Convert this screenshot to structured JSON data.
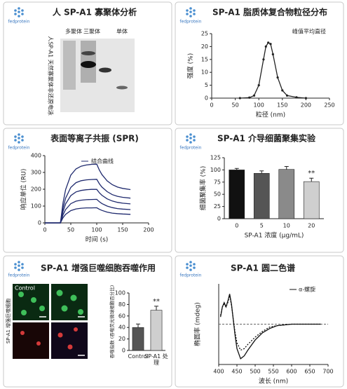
{
  "logo": "fedprotein",
  "gel": {
    "title": "人 SP-A1 寡聚体分析",
    "lanes": [
      "多聚体",
      "三聚体",
      "单体"
    ],
    "side_label": "人SP-A1 天然寡聚体非还原电泳"
  },
  "micrograph": {
    "control_label": "Control",
    "side_label": "SP-A1 增强巨噬细胞"
  },
  "chart_data": [
    {
      "type": "line",
      "title": "SP-A1 脂质体复合物粒径分布",
      "xlabel": "粒径 (nm)",
      "ylabel": "强度 (%)",
      "annotation": "峰值平均直径",
      "markers": true,
      "x": [
        60,
        80,
        90,
        100,
        110,
        115,
        120,
        125,
        130,
        140,
        150,
        160,
        180,
        200
      ],
      "series": [
        {
          "color": "#222222",
          "values": [
            0,
            0.2,
            1,
            5,
            15,
            20,
            21.5,
            21,
            17,
            8,
            3,
            1,
            0.3,
            0
          ]
        }
      ],
      "xlim": [
        0,
        250
      ],
      "xticks": [
        0,
        50,
        100,
        150,
        200,
        250
      ],
      "ylim": [
        0,
        25
      ],
      "yticks": [
        0,
        5,
        10,
        15,
        20,
        25
      ]
    },
    {
      "type": "line",
      "title": "表面等离子共振 (SPR)",
      "xlabel": "时间 (s)",
      "ylabel": "响应单位 (RU)",
      "legend": "结合曲线",
      "x": [
        0,
        20,
        30,
        35,
        40,
        50,
        60,
        70,
        80,
        90,
        100,
        105,
        110,
        120,
        130,
        140,
        150,
        165
      ],
      "series": [
        {
          "color": "#1f2a6e",
          "values": [
            0,
            0,
            0,
            119,
            198,
            284,
            321,
            337,
            344,
            348,
            349,
            314,
            287,
            250,
            227,
            213,
            205,
            198
          ]
        },
        {
          "color": "#1f2a6e",
          "values": [
            0,
            0,
            0,
            89,
            147,
            211,
            239,
            251,
            256,
            258,
            259,
            233,
            213,
            186,
            168,
            158,
            152,
            147
          ]
        },
        {
          "color": "#1f2a6e",
          "values": [
            0,
            0,
            0,
            68,
            113,
            162,
            184,
            193,
            197,
            199,
            199,
            179,
            164,
            143,
            130,
            122,
            117,
            113
          ]
        },
        {
          "color": "#1f2a6e",
          "values": [
            0,
            0,
            0,
            48,
            79,
            114,
            129,
            135,
            138,
            139,
            140,
            126,
            115,
            100,
            91,
            85,
            82,
            79
          ]
        },
        {
          "color": "#1f2a6e",
          "values": [
            0,
            0,
            0,
            31,
            51,
            73,
            83,
            87,
            89,
            89,
            90,
            81,
            74,
            64,
            58,
            55,
            53,
            51
          ]
        }
      ],
      "xlim": [
        0,
        200
      ],
      "xticks": [
        0,
        50,
        100,
        150,
        200
      ],
      "ylim": [
        0,
        400
      ],
      "yticks": [
        0,
        100,
        200,
        300,
        400
      ]
    },
    {
      "type": "bar",
      "title": "SP-A1 介导细菌聚集实验",
      "xlabel": "SP-A1 浓度 (μg/mL)",
      "ylabel": "细菌聚集率 (%)",
      "categories": [
        "0",
        "5",
        "10",
        "20"
      ],
      "values": [
        100,
        93,
        101,
        76
      ],
      "errors": [
        3,
        5,
        6,
        7
      ],
      "colors": [
        "#111111",
        "#555555",
        "#8a8a8a",
        "#cfcfcf"
      ],
      "annotation": "**",
      "ylim": [
        0,
        125
      ],
      "yticks": [
        0,
        25,
        50,
        75,
        100,
        125
      ]
    },
    {
      "type": "bar",
      "title": "SP-A1 增强巨噬细胞吞噬作用",
      "ylabel": "吞噬指数 (吞噬荧光微球细胞百分比)",
      "categories": [
        "Control",
        "SP-A1 处理"
      ],
      "values": [
        40,
        70
      ],
      "errors": [
        6,
        7
      ],
      "colors": [
        "#555555",
        "#cfcfcf"
      ],
      "annotation": "**",
      "ylim": [
        0,
        100
      ],
      "yticks": [
        0,
        20,
        40,
        60,
        80,
        100
      ]
    },
    {
      "type": "line",
      "title": "SP-A1 圆二色谱",
      "xlabel": "波长 (nm)",
      "ylabel": "椭圆率 (mdeg)",
      "reference_line": 0,
      "x": [
        405,
        410,
        415,
        420,
        425,
        430,
        435,
        440,
        445,
        450,
        460,
        470,
        480,
        500,
        520,
        540,
        560,
        600,
        640,
        680
      ],
      "series": [
        {
          "name": "α-螺旋",
          "color": "#111111",
          "values": [
            5,
            12,
            15,
            12,
            16,
            21,
            14,
            3,
            -8,
            -17,
            -24,
            -22,
            -18,
            -11,
            -6,
            -3,
            -1,
            0,
            0,
            0
          ]
        },
        {
          "color": "#111111",
          "dash": true,
          "values": [
            6,
            12,
            14,
            12,
            15,
            20,
            13,
            3,
            -6,
            -13,
            -18,
            -17,
            -14,
            -9,
            -5,
            -2,
            -1,
            0,
            0,
            0
          ]
        }
      ],
      "xlim": [
        400,
        700
      ],
      "xticks": [
        400,
        450,
        500,
        550,
        600,
        650,
        700
      ],
      "ylim": [
        -28,
        28
      ]
    }
  ]
}
